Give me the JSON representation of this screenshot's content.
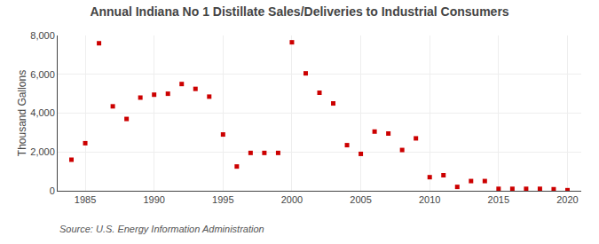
{
  "chart_data": {
    "type": "scatter",
    "title": "Annual Indiana No 1 Distillate Sales/Deliveries to Industrial Consumers",
    "ylabel": "Thousand Gallons",
    "annotations": [
      "Source: U.S. Energy Information Administration"
    ],
    "x": [
      1984,
      1985,
      1986,
      1987,
      1988,
      1989,
      1990,
      1991,
      1992,
      1993,
      1994,
      1995,
      1996,
      1997,
      1998,
      1999,
      2000,
      2001,
      2002,
      2003,
      2004,
      2005,
      2006,
      2007,
      2008,
      2009,
      2010,
      2011,
      2012,
      2013,
      2014,
      2015,
      2016,
      2017,
      2018,
      2019,
      2020
    ],
    "values": [
      1600,
      2450,
      7600,
      4350,
      3700,
      4800,
      4950,
      5000,
      5500,
      5250,
      4850,
      2900,
      1250,
      1950,
      1950,
      1950,
      7650,
      6050,
      5050,
      4500,
      2350,
      1900,
      3050,
      2950,
      2100,
      2700,
      700,
      800,
      200,
      500,
      500,
      100,
      100,
      100,
      100,
      80,
      30
    ],
    "color": "#cc0000",
    "marker": "square",
    "xlim": [
      1983,
      2021
    ],
    "ylim": [
      0,
      8000
    ],
    "xticks": [
      1985,
      1990,
      1995,
      2000,
      2005,
      2010,
      2015,
      2020
    ],
    "yticks": [
      0,
      {
        "value": 2000,
        "label": "2,000"
      },
      {
        "value": 4000,
        "label": "4,000"
      },
      {
        "value": 6000,
        "label": "6,000"
      },
      {
        "value": 8000,
        "label": "8,000"
      }
    ],
    "grid": true
  }
}
